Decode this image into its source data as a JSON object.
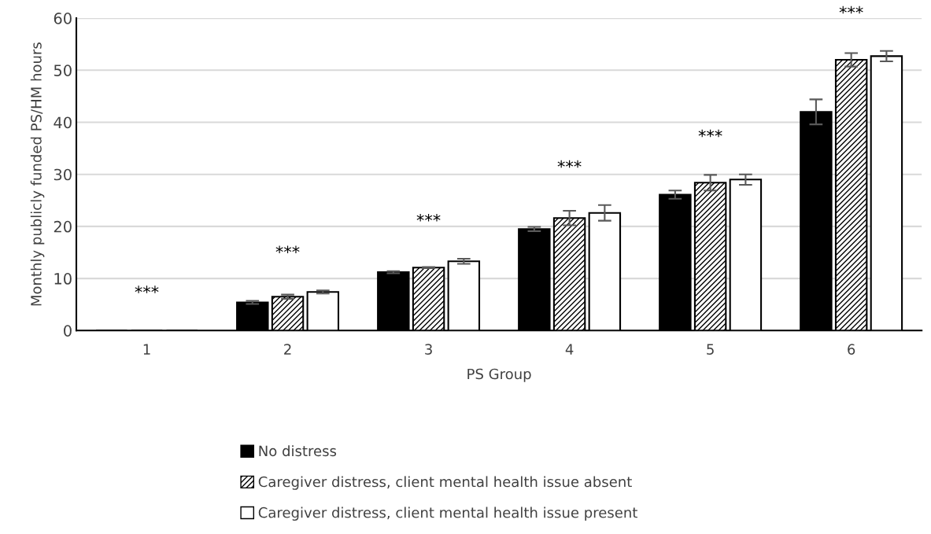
{
  "chart_data": {
    "type": "bar",
    "xlabel": "PS Group",
    "ylabel": "Monthly publicly funded PS/HM hours",
    "categories": [
      "1",
      "2",
      "3",
      "4",
      "5",
      "6"
    ],
    "series": [
      {
        "name": "No distress",
        "color": "#000000",
        "values": [
          0,
          5.4,
          11.2,
          19.5,
          26.1,
          42.0
        ],
        "errors": [
          null,
          0.3,
          0.2,
          0.4,
          0.8,
          2.4
        ]
      },
      {
        "name": "Caregiver distress, client mental health issue absent",
        "color": "#000000",
        "values": [
          0,
          6.5,
          12.1,
          21.6,
          28.4,
          52.0
        ],
        "errors": [
          null,
          0.4,
          0.1,
          1.4,
          1.5,
          1.3
        ]
      },
      {
        "name": "Caregiver distress, client mental health issue present",
        "color": "#ffffff",
        "values": [
          0,
          7.4,
          13.3,
          22.6,
          29.0,
          52.7
        ],
        "errors": [
          null,
          0.3,
          0.5,
          1.5,
          1.0,
          1.0
        ]
      }
    ],
    "ylim": [
      0,
      60
    ],
    "yticks": [
      0,
      10,
      20,
      30,
      40,
      50,
      60
    ],
    "grid": "y",
    "legend": "bottom",
    "annotations": [
      "***",
      "***",
      "***",
      "***",
      "***",
      "***"
    ]
  }
}
